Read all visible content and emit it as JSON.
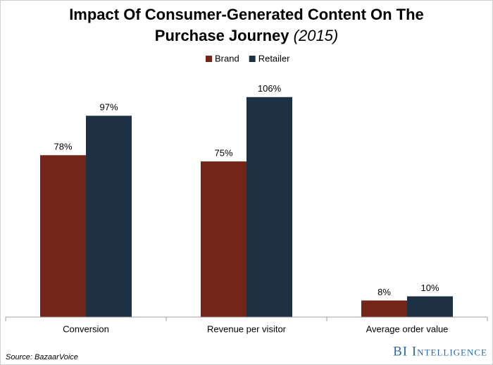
{
  "chart_data": {
    "type": "bar",
    "title_lines": [
      "Impact Of Consumer-Generated Content On The",
      "Purchase Journey"
    ],
    "title_suffix": "(2015)",
    "categories": [
      "Conversion",
      "Revenue per visitor",
      "Average order value"
    ],
    "series": [
      {
        "name": "Brand",
        "color": "#732617",
        "values": [
          78,
          75,
          8
        ],
        "value_labels": [
          "78%",
          "75%",
          "8%"
        ]
      },
      {
        "name": "Retailer",
        "color": "#1e3044",
        "values": [
          97,
          106,
          10
        ],
        "value_labels": [
          "97%",
          "106%",
          "10%"
        ]
      }
    ],
    "ylim": [
      0,
      110
    ],
    "legend": "top",
    "source": "Source: BazaarVoice",
    "logo": "BI Intelligence"
  }
}
